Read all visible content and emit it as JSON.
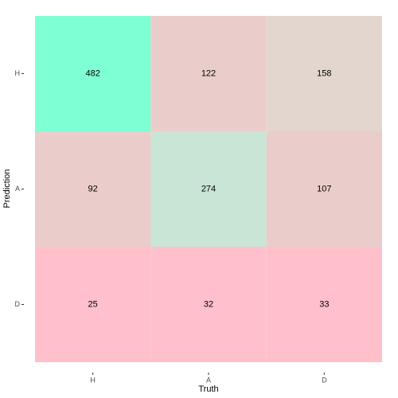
{
  "chart_data": {
    "type": "heatmap",
    "x_label": "Truth",
    "y_label": "Prediction",
    "x_categories": [
      "H",
      "A",
      "D"
    ],
    "y_categories": [
      "H",
      "A",
      "D"
    ],
    "values": [
      [
        482,
        122,
        158
      ],
      [
        92,
        274,
        107
      ],
      [
        25,
        32,
        33
      ]
    ],
    "colors": [
      [
        "#7fffd4",
        "#eacdcb",
        "#e2d6cf"
      ],
      [
        "#eacdcb",
        "#c8e5d6",
        "#eacdcb"
      ],
      [
        "#ffc0cb",
        "#ffc0cb",
        "#ffc0cb"
      ]
    ]
  }
}
